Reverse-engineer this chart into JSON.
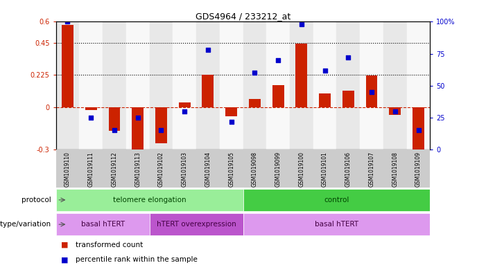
{
  "title": "GDS4964 / 233212_at",
  "samples": [
    "GSM1019110",
    "GSM1019111",
    "GSM1019112",
    "GSM1019113",
    "GSM1019102",
    "GSM1019103",
    "GSM1019104",
    "GSM1019105",
    "GSM1019098",
    "GSM1019099",
    "GSM1019100",
    "GSM1019101",
    "GSM1019106",
    "GSM1019107",
    "GSM1019108",
    "GSM1019109"
  ],
  "bar_values": [
    0.58,
    -0.02,
    -0.17,
    -0.305,
    -0.255,
    0.03,
    0.225,
    -0.065,
    0.055,
    0.155,
    0.445,
    0.095,
    0.115,
    0.22,
    -0.055,
    -0.32
  ],
  "dot_values": [
    100,
    25,
    15,
    25,
    15,
    30,
    78,
    22,
    60,
    70,
    98,
    62,
    72,
    45,
    30,
    15
  ],
  "ylim_left": [
    -0.3,
    0.6
  ],
  "ylim_right": [
    0,
    100
  ],
  "yticks_left": [
    -0.3,
    0.0,
    0.225,
    0.45,
    0.6
  ],
  "ytick_labels_left": [
    "-0.3",
    "0",
    "0.225",
    "0.45",
    "0.6"
  ],
  "yticks_right": [
    0,
    25,
    50,
    75,
    100
  ],
  "ytick_labels_right": [
    "0",
    "25",
    "50",
    "75",
    "100%"
  ],
  "hlines": [
    0.45,
    0.225
  ],
  "bar_color": "#cc2200",
  "dot_color": "#0000cc",
  "zero_line_color": "#cc2200",
  "tick_bg_color": "#cccccc",
  "protocol_groups": [
    {
      "label": "telomere elongation",
      "start": 0,
      "end": 8,
      "color": "#99ee99"
    },
    {
      "label": "control",
      "start": 8,
      "end": 16,
      "color": "#44cc44"
    }
  ],
  "genotype_groups": [
    {
      "label": "basal hTERT",
      "start": 0,
      "end": 4,
      "color": "#dd99ee"
    },
    {
      "label": "hTERT overexpression",
      "start": 4,
      "end": 8,
      "color": "#bb55cc"
    },
    {
      "label": "basal hTERT",
      "start": 8,
      "end": 16,
      "color": "#dd99ee"
    }
  ],
  "legend_items": [
    {
      "color": "#cc2200",
      "label": "transformed count"
    },
    {
      "color": "#0000cc",
      "label": "percentile rank within the sample"
    }
  ],
  "xlabel_protocol": "protocol",
  "xlabel_genotype": "genotype/variation",
  "protocol_text_color": "#004400",
  "genotype_text_color": "#440044"
}
